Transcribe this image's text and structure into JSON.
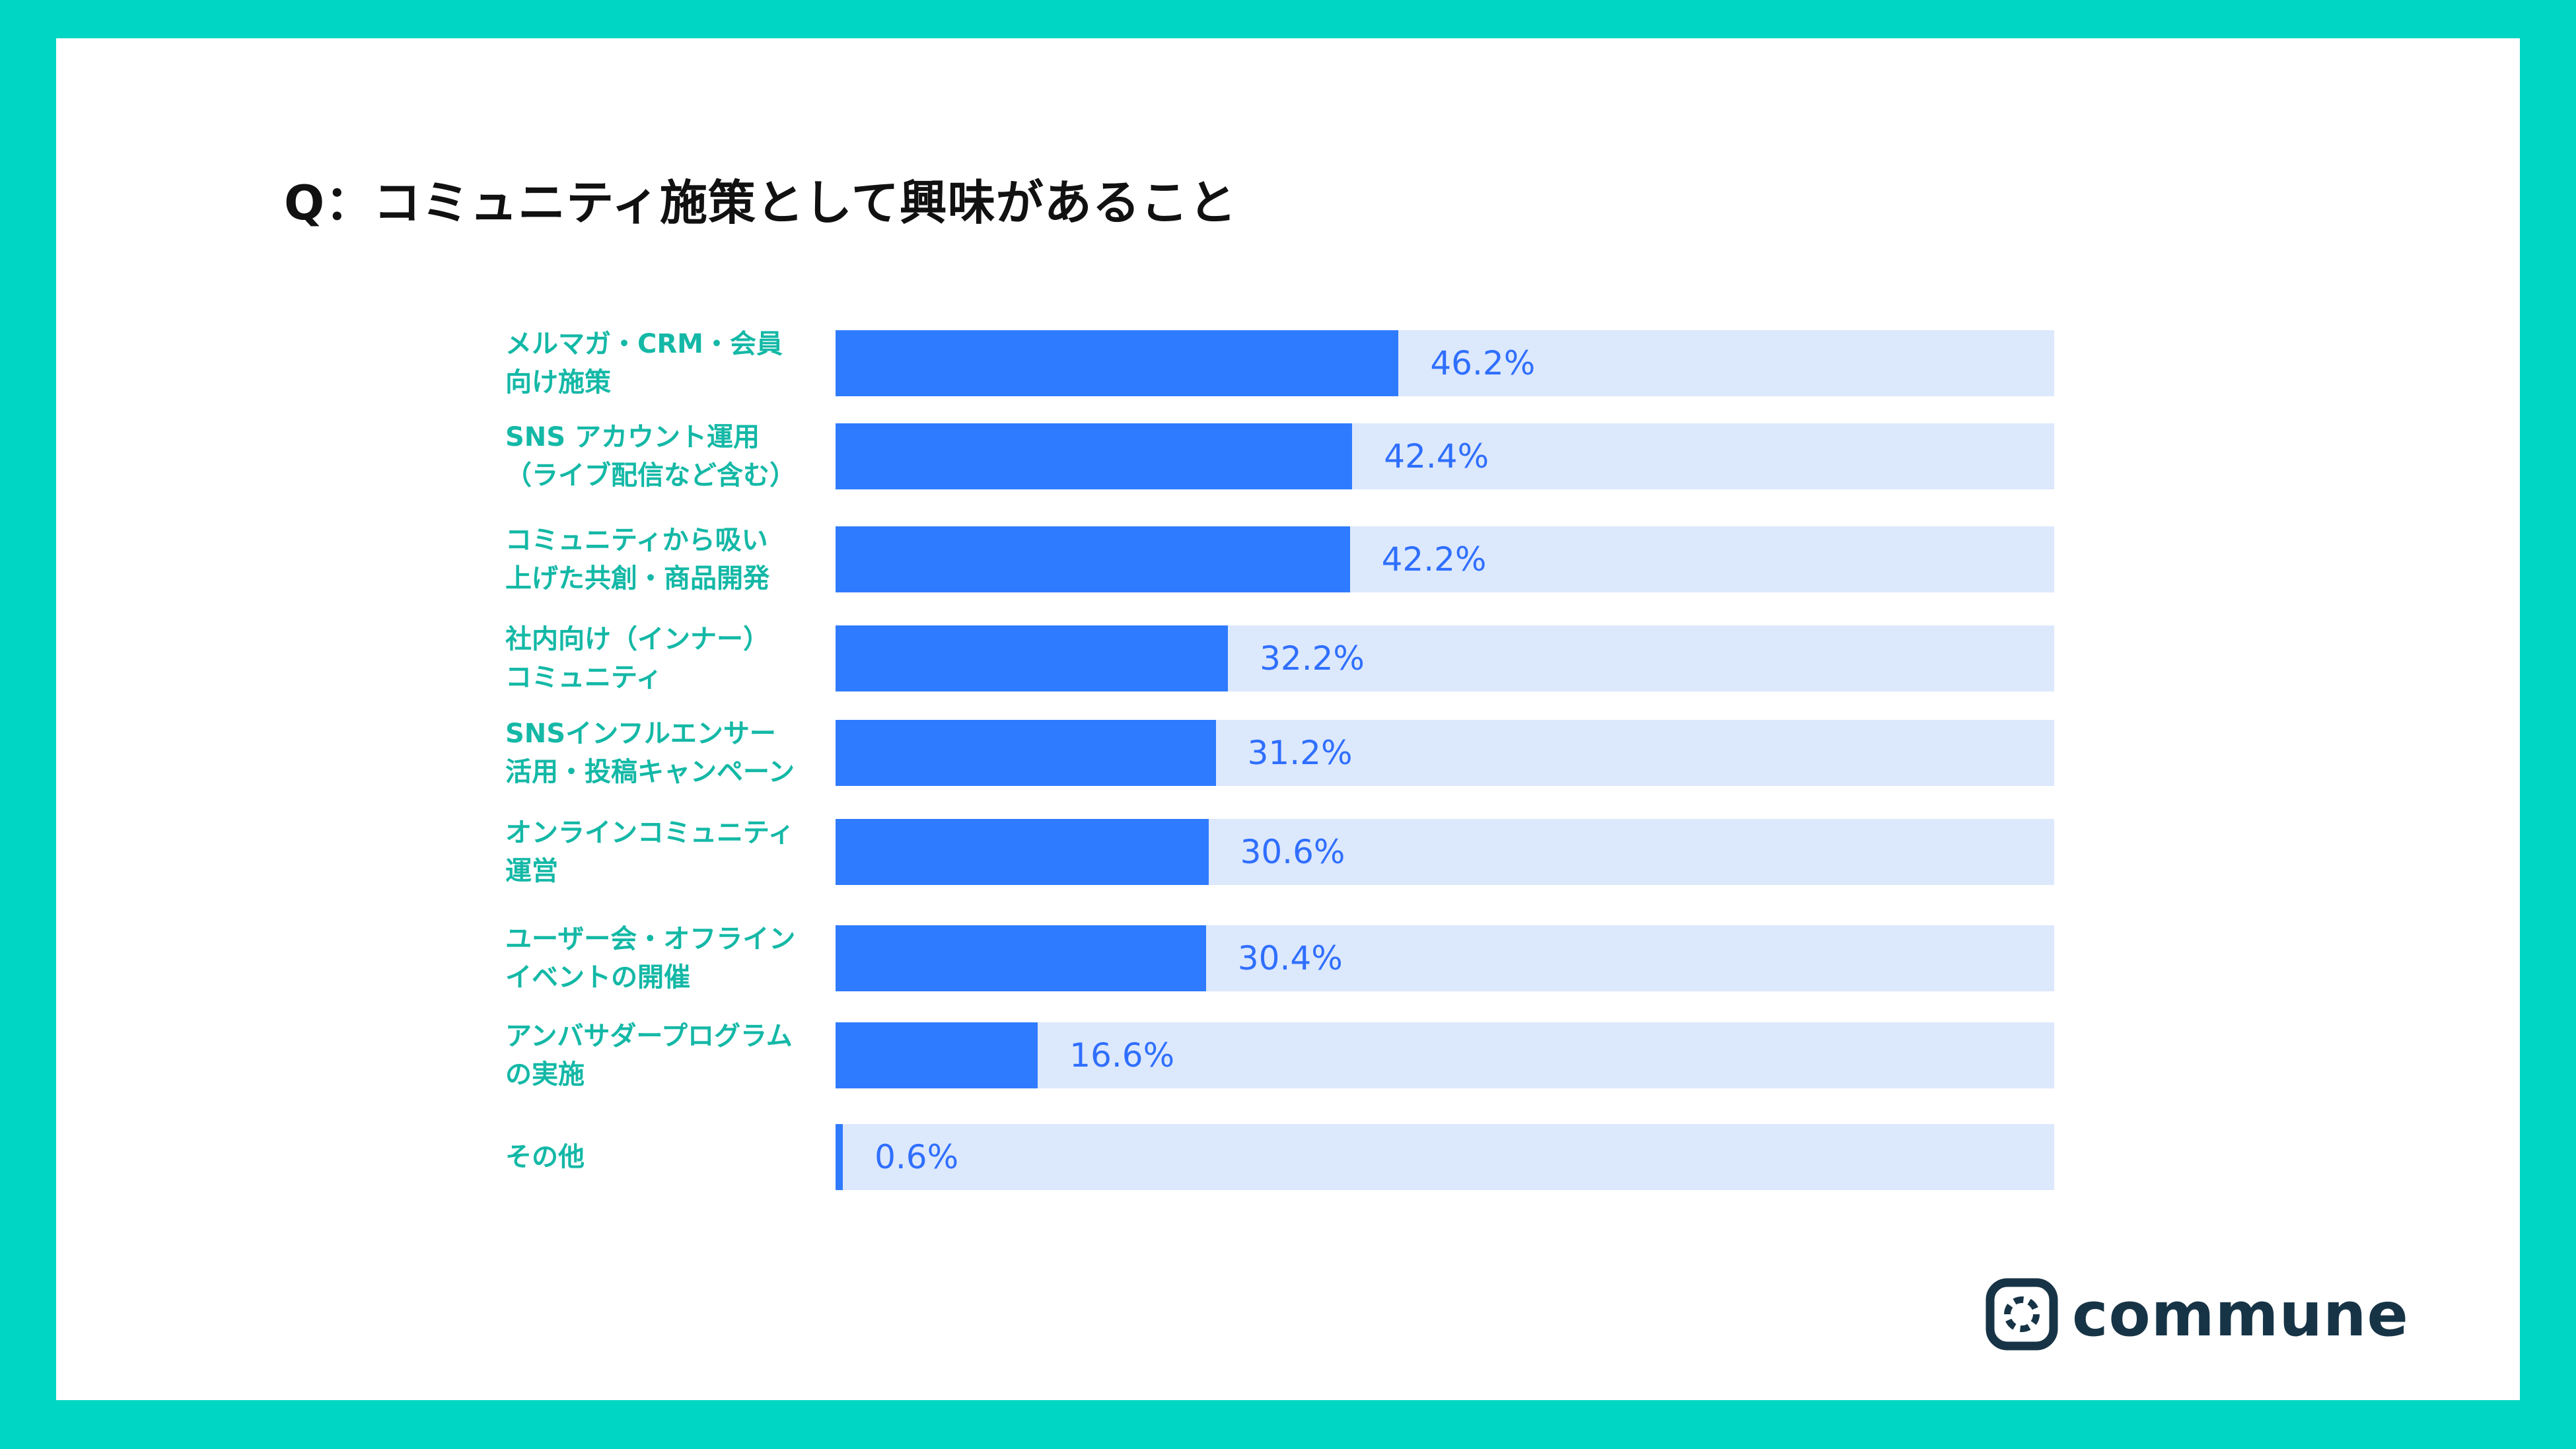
{
  "title": "Q：コミュニティ施策として興味があること",
  "brand": {
    "name": "commune",
    "frame_color": "#00d6c4",
    "bar_color": "#2f7bff",
    "track_color": "#dce8fc",
    "label_color": "#14b8a6",
    "logo_color": "#173446"
  },
  "chart_data": {
    "type": "bar",
    "orientation": "horizontal",
    "title": "Q：コミュニティ施策として興味があること",
    "xlabel": "",
    "ylabel": "",
    "xlim": [
      0,
      100
    ],
    "grid": false,
    "categories": [
      "メルマガ・CRM・会員\n向け施策",
      "SNS アカウント運用\n（ライブ配信など含む）",
      "コミュニティから吸い\n上げた共創・商品開発",
      "社内向け（インナー）\nコミュニティ",
      "SNSインフルエンサー\n活用・投稿キャンペーン",
      "オンラインコミュニティ\n運営",
      "ユーザー会・オフライン\nイベントの開催",
      "アンバサダープログラム\nの実施",
      "その他"
    ],
    "values": [
      46.2,
      42.4,
      42.2,
      32.2,
      31.2,
      30.6,
      30.4,
      16.6,
      0.6
    ],
    "value_labels": [
      "46.2%",
      "42.4%",
      "42.2%",
      "32.2%",
      "31.2%",
      "30.6%",
      "30.4%",
      "16.6%",
      "0.6%"
    ]
  }
}
